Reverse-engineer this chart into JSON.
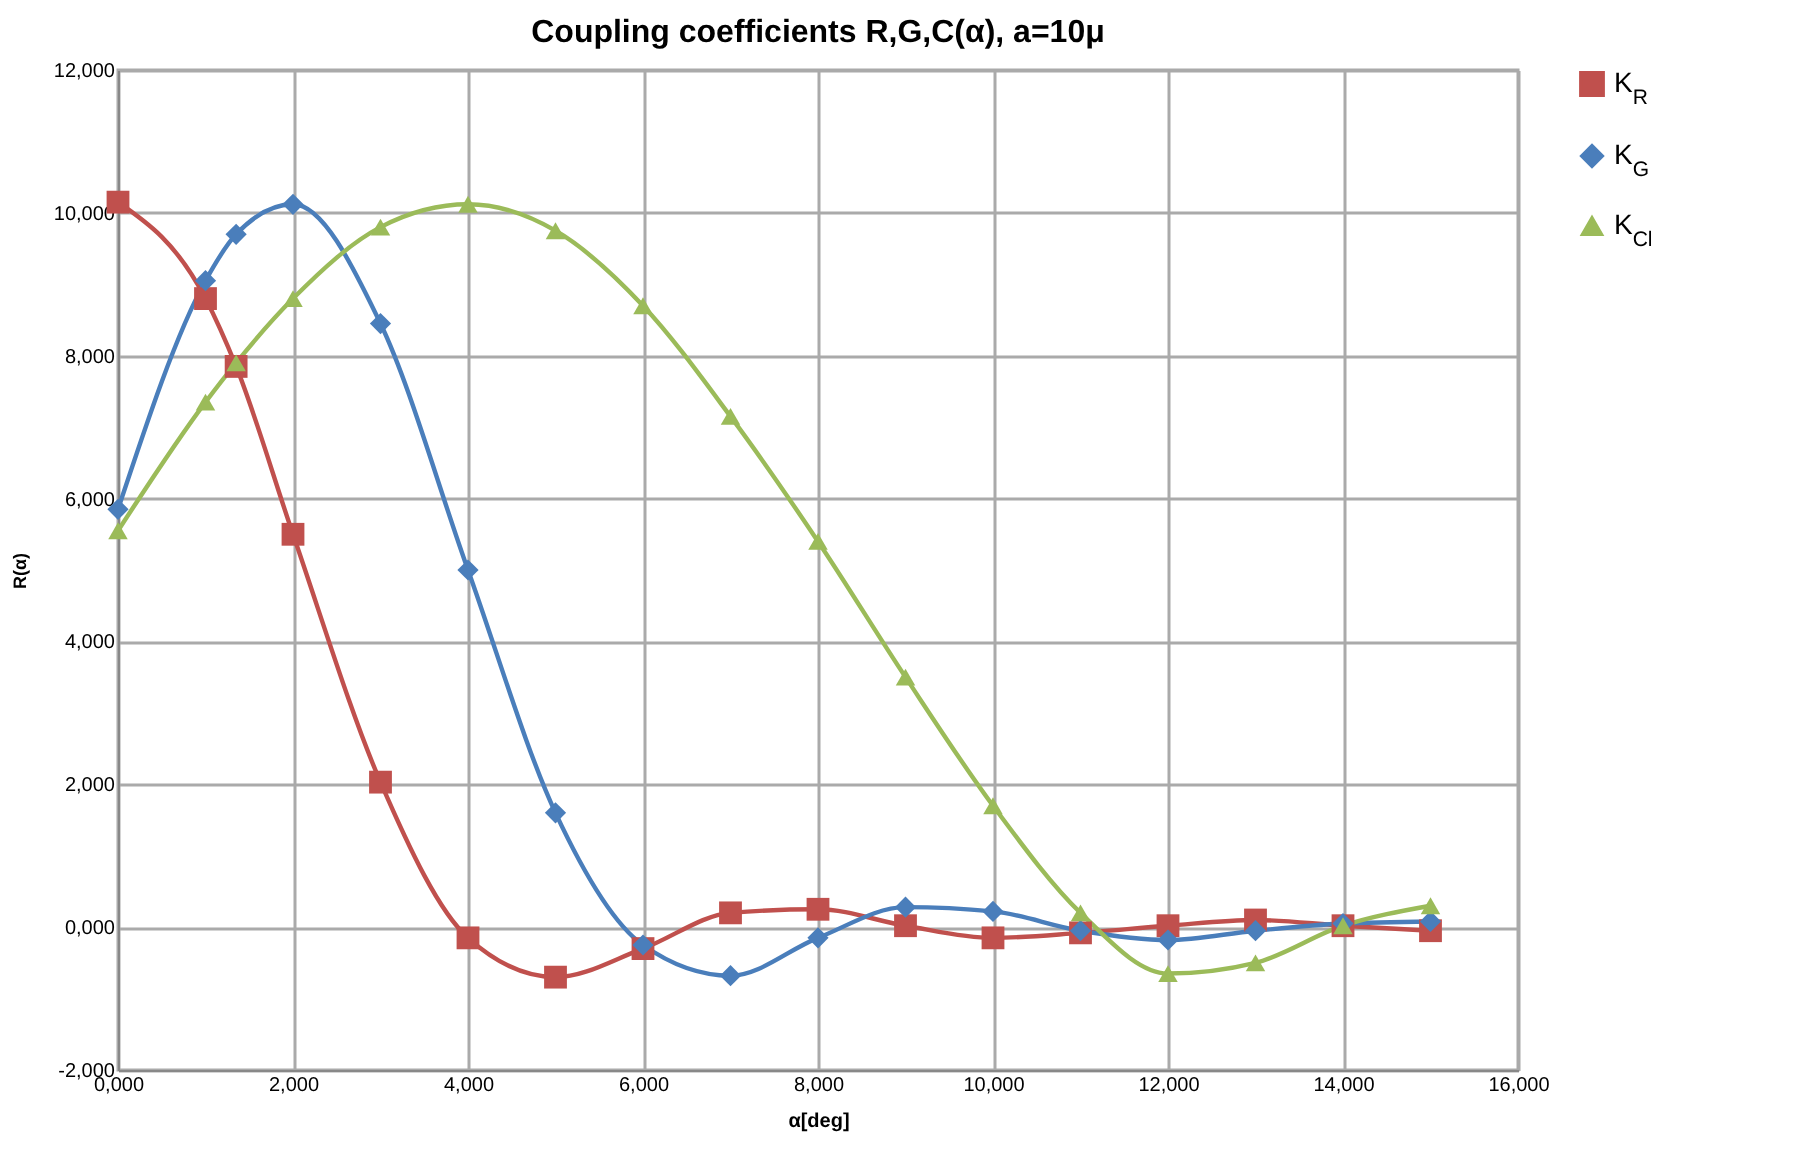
{
  "chart_data": {
    "type": "line",
    "title": "Coupling coefficients R,G,C(α), a=10μ",
    "xlabel": "α[deg]",
    "ylabel": "R(α)",
    "x": [
      0,
      1,
      1.35,
      2,
      3,
      4,
      5,
      6,
      7,
      8,
      9,
      10,
      11,
      12,
      13,
      14,
      15
    ],
    "series": [
      {
        "name": "K$_{R}$",
        "color": "#c0504d",
        "marker": "square",
        "values": [
          10.15,
          8.8,
          7.85,
          5.5,
          2.03,
          -0.15,
          -0.7,
          -0.3,
          0.2,
          0.25,
          0.02,
          -0.15,
          -0.08,
          0.02,
          0.1,
          0.02,
          -0.05
        ]
      },
      {
        "name": "K$_{G}$",
        "color": "#4a7ebb",
        "marker": "diamond",
        "values": [
          5.85,
          9.05,
          9.7,
          10.12,
          8.45,
          5.0,
          1.6,
          -0.25,
          -0.68,
          -0.15,
          0.28,
          0.22,
          -0.05,
          -0.18,
          -0.05,
          0.05,
          0.08
        ]
      },
      {
        "name": "K$_{Cl}$",
        "color": "#9bbb59",
        "marker": "triangle",
        "values": [
          5.55,
          7.35,
          7.9,
          8.8,
          9.8,
          10.12,
          9.75,
          8.7,
          7.15,
          5.4,
          3.5,
          1.7,
          0.2,
          -0.65,
          -0.5,
          0.02,
          0.3
        ]
      }
    ],
    "xlim": [
      0,
      16
    ],
    "xticks": [
      {
        "value": 0,
        "label": "0,000"
      },
      {
        "value": 2,
        "label": "2,000"
      },
      {
        "value": 4,
        "label": "4,000"
      },
      {
        "value": 6,
        "label": "6,000"
      },
      {
        "value": 8,
        "label": "8,000"
      },
      {
        "value": 10,
        "label": "10,000"
      },
      {
        "value": 12,
        "label": "12,000"
      },
      {
        "value": 14,
        "label": "14,000"
      },
      {
        "value": 16,
        "label": "16,000"
      }
    ],
    "ylim": [
      -2,
      12
    ],
    "yticks": [
      {
        "value": -2,
        "label": "-2,000"
      },
      {
        "value": 0,
        "label": "0,000"
      },
      {
        "value": 2,
        "label": "2,000"
      },
      {
        "value": 4,
        "label": "4,000"
      },
      {
        "value": 6,
        "label": "6,000"
      },
      {
        "value": 8,
        "label": "8,000"
      },
      {
        "value": 10,
        "label": "10,000"
      },
      {
        "value": 12,
        "label": "12,000"
      }
    ],
    "grid": true,
    "legend": "right"
  }
}
